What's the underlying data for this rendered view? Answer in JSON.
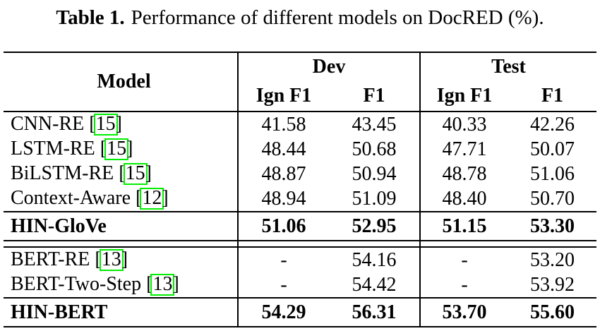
{
  "caption": {
    "label": "Table 1.",
    "text": "Performance of different models on DocRED (%)."
  },
  "citation": {
    "open": "[",
    "close": "]"
  },
  "colors": {
    "link_box": "#00ee00",
    "text": "#000000",
    "rule": "#000000"
  },
  "table": {
    "columns": {
      "model": "Model",
      "dev": "Dev",
      "test": "Test",
      "ign_f1": "Ign F1",
      "f1": "F1"
    },
    "groups": [
      {
        "rows": [
          {
            "model": "CNN-RE",
            "cite": "15",
            "dev_ign_f1": "41.58",
            "dev_f1": "43.45",
            "test_ign_f1": "40.33",
            "test_f1": "42.26",
            "highlight": false
          },
          {
            "model": "LSTM-RE",
            "cite": "15",
            "dev_ign_f1": "48.44",
            "dev_f1": "50.68",
            "test_ign_f1": "47.71",
            "test_f1": "50.07",
            "highlight": false
          },
          {
            "model": "BiLSTM-RE",
            "cite": "15",
            "dev_ign_f1": "48.87",
            "dev_f1": "50.94",
            "test_ign_f1": "48.78",
            "test_f1": "51.06",
            "highlight": false
          },
          {
            "model": "Context-Aware",
            "cite": "12",
            "dev_ign_f1": "48.94",
            "dev_f1": "51.09",
            "test_ign_f1": "48.40",
            "test_f1": "50.70",
            "highlight": false
          },
          {
            "model": "HIN-GloVe",
            "cite": "",
            "dev_ign_f1": "51.06",
            "dev_f1": "52.95",
            "test_ign_f1": "51.15",
            "test_f1": "53.30",
            "highlight": true
          }
        ]
      },
      {
        "rows": [
          {
            "model": "BERT-RE",
            "cite": "13",
            "dev_ign_f1": "-",
            "dev_f1": "54.16",
            "test_ign_f1": "-",
            "test_f1": "53.20",
            "highlight": false
          },
          {
            "model": "BERT-Two-Step",
            "cite": "13",
            "dev_ign_f1": "-",
            "dev_f1": "54.42",
            "test_ign_f1": "-",
            "test_f1": "53.92",
            "highlight": false
          },
          {
            "model": "HIN-BERT",
            "cite": "",
            "dev_ign_f1": "54.29",
            "dev_f1": "56.31",
            "test_ign_f1": "53.70",
            "test_f1": "55.60",
            "highlight": true
          }
        ]
      }
    ]
  }
}
